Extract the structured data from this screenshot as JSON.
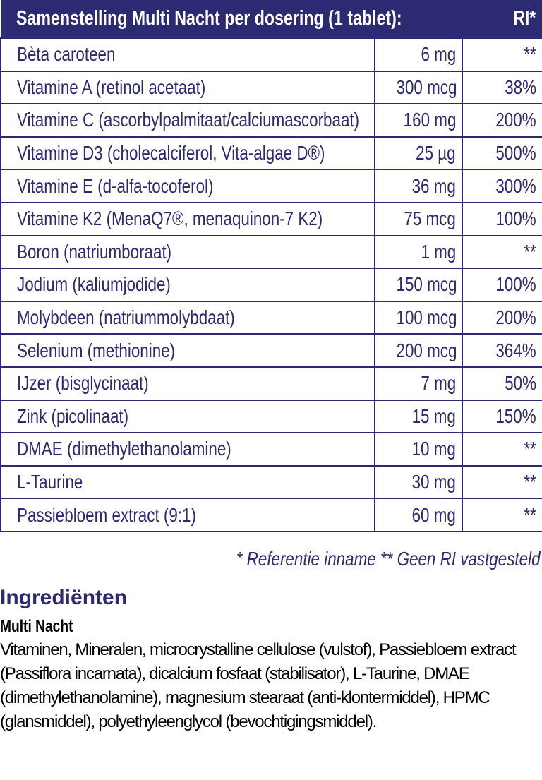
{
  "table": {
    "header": {
      "title": "Samenstelling Multi Nacht per dosering (1 tablet):",
      "ri": "RI*"
    },
    "rows": [
      {
        "name": "Bèta caroteen",
        "amount": "6 mg",
        "ri": "**"
      },
      {
        "name": "Vitamine A (retinol acetaat)",
        "amount": "300 mcg",
        "ri": "38%"
      },
      {
        "name": "Vitamine C (ascorbylpalmitaat/calciumascorbaat)",
        "amount": "160 mg",
        "ri": "200%"
      },
      {
        "name": "Vitamine D3 (cholecalciferol, Vita-algae D®)",
        "amount": "25 µg",
        "ri": "500%"
      },
      {
        "name": "Vitamine E (d-alfa-tocoferol)",
        "amount": "36 mg",
        "ri": "300%"
      },
      {
        "name": "Vitamine K2 (MenaQ7®, menaquinon-7 K2)",
        "amount": "75 mcg",
        "ri": "100%"
      },
      {
        "name": "Boron (natriumboraat)",
        "amount": "1 mg",
        "ri": "**"
      },
      {
        "name": "Jodium (kaliumjodide)",
        "amount": "150 mcg",
        "ri": "100%"
      },
      {
        "name": "Molybdeen (natriummolybdaat)",
        "amount": "100 mcg",
        "ri": "200%"
      },
      {
        "name": "Selenium (methionine)",
        "amount": "200 mcg",
        "ri": "364%"
      },
      {
        "name": "IJzer (bisglycinaat)",
        "amount": "7 mg",
        "ri": "50%"
      },
      {
        "name": "Zink (picolinaat)",
        "amount": "15 mg",
        "ri": "150%"
      },
      {
        "name": "DMAE (dimethylethanolamine)",
        "amount": "10 mg",
        "ri": "**"
      },
      {
        "name": "L-Taurine",
        "amount": "30 mg",
        "ri": "**"
      },
      {
        "name": "Passiebloem extract (9:1)",
        "amount": "60 mg",
        "ri": "**"
      }
    ]
  },
  "legend": "* Referentie inname  ** Geen RI vastgesteld",
  "ingredients": {
    "heading": "Ingrediënten",
    "product": "Multi Nacht",
    "text": "Vitaminen, Mineralen, microcrystalline cellulose (vulstof), Passiebloem extract (Passiflora incarnata), dicalcium fosfaat (stabilisator), L-Taurine, DMAE (dimethylethanolamine), magnesium stearaat (anti-klontermiddel), HPMC (glansmiddel), polyethyleenglycol (bevochtigingsmiddel)."
  },
  "colors": {
    "brand": "#2b2a72"
  }
}
